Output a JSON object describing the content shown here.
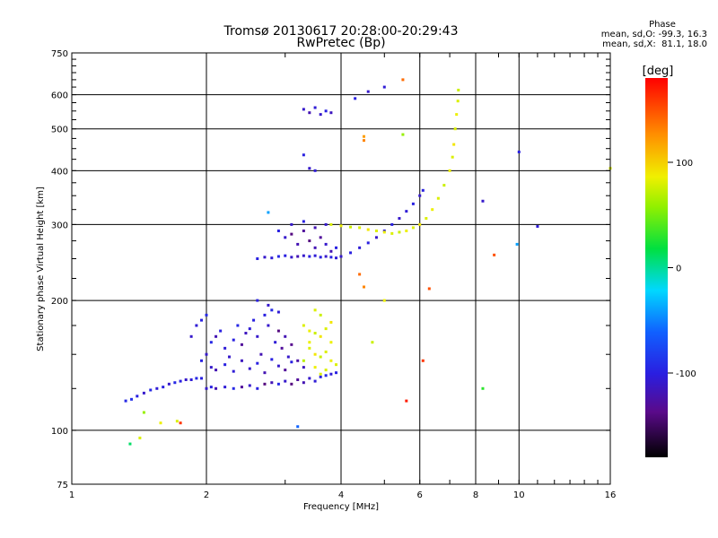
{
  "header": {
    "title_line1": "Tromsø 20130617 20:28:00-20:29:43",
    "title_line2": "RwPretec (Bp)"
  },
  "phase_box": {
    "title": "Phase",
    "line_o": "mean, sd,O: -99.3, 16.3",
    "line_x": "mean, sd,X:  81.1, 18.0"
  },
  "colorbar": {
    "unit_label": "[deg]",
    "range": [
      -180,
      180
    ],
    "ticks": [
      {
        "v": 100,
        "label": "100"
      },
      {
        "v": 0,
        "label": "0"
      },
      {
        "v": -100,
        "label": "-100"
      }
    ]
  },
  "chart_data": {
    "type": "scatter",
    "title": "Tromsø 20130617 20:28:00-20:29:43",
    "subtitle": "RwPretec (Bp)",
    "xlabel": "Frequency [MHz]",
    "ylabel": "Stationary phase Virtual Height [km]",
    "x_scale": "log",
    "y_scale": "log",
    "xlim": [
      1,
      16
    ],
    "ylim": [
      75,
      750
    ],
    "x_ticks": [
      {
        "v": 1,
        "label": "1"
      },
      {
        "v": 2,
        "label": "2"
      },
      {
        "v": 4,
        "label": "4"
      },
      {
        "v": 6,
        "label": "6"
      },
      {
        "v": 8,
        "label": "8"
      },
      {
        "v": 10,
        "label": "10"
      },
      {
        "v": 16,
        "label": "16"
      }
    ],
    "y_ticks": [
      {
        "v": 75,
        "label": "75"
      },
      {
        "v": 100,
        "label": "100"
      },
      {
        "v": 200,
        "label": "200"
      },
      {
        "v": 300,
        "label": "300"
      },
      {
        "v": 400,
        "label": "400"
      },
      {
        "v": 500,
        "label": "500"
      },
      {
        "v": 600,
        "label": "600"
      },
      {
        "v": 750,
        "label": "750"
      }
    ],
    "grid_x": [
      2,
      4,
      6,
      8,
      10
    ],
    "grid_y": [
      100,
      200,
      300,
      400,
      500,
      600
    ],
    "color_by": "phase_deg",
    "series": [
      {
        "name": "O",
        "points": [
          [
            1.32,
            117,
            -95
          ],
          [
            1.36,
            118,
            -90
          ],
          [
            1.4,
            120,
            -100
          ],
          [
            1.45,
            122,
            -110
          ],
          [
            1.5,
            124,
            -95
          ],
          [
            1.55,
            125,
            -105
          ],
          [
            1.6,
            126,
            -100
          ],
          [
            1.65,
            128,
            -110
          ],
          [
            1.7,
            129,
            -95
          ],
          [
            1.75,
            130,
            -100
          ],
          [
            1.8,
            131,
            -110
          ],
          [
            1.85,
            131,
            -105
          ],
          [
            1.9,
            132,
            -95
          ],
          [
            1.95,
            132,
            -100
          ],
          [
            2.0,
            125,
            -110
          ],
          [
            2.05,
            126,
            -100
          ],
          [
            2.1,
            125,
            -120
          ],
          [
            2.2,
            126,
            -105
          ],
          [
            2.3,
            125,
            -95
          ],
          [
            2.4,
            126,
            -130
          ],
          [
            2.5,
            127,
            -110
          ],
          [
            2.6,
            125,
            -100
          ],
          [
            2.7,
            128,
            -140
          ],
          [
            2.8,
            129,
            -120
          ],
          [
            2.9,
            128,
            -95
          ],
          [
            3.0,
            130,
            -110
          ],
          [
            3.1,
            128,
            -140
          ],
          [
            3.2,
            131,
            -130
          ],
          [
            3.3,
            129,
            -120
          ],
          [
            3.4,
            132,
            -110
          ],
          [
            3.5,
            130,
            -105
          ],
          [
            3.6,
            133,
            -100
          ],
          [
            3.7,
            134,
            -95
          ],
          [
            3.8,
            135,
            -105
          ],
          [
            3.9,
            136,
            -100
          ],
          [
            1.95,
            145,
            -100
          ],
          [
            2.0,
            150,
            -110
          ],
          [
            2.05,
            160,
            -95
          ],
          [
            2.1,
            165,
            -120
          ],
          [
            2.15,
            170,
            -100
          ],
          [
            2.2,
            155,
            -105
          ],
          [
            2.25,
            148,
            -110
          ],
          [
            2.3,
            162,
            -100
          ],
          [
            2.35,
            175,
            -95
          ],
          [
            2.4,
            158,
            -130
          ],
          [
            2.45,
            168,
            -115
          ],
          [
            2.5,
            172,
            -105
          ],
          [
            2.55,
            180,
            -100
          ],
          [
            2.6,
            165,
            -110
          ],
          [
            2.65,
            150,
            -120
          ],
          [
            2.7,
            185,
            -100
          ],
          [
            2.75,
            175,
            -110
          ],
          [
            2.8,
            190,
            -95
          ],
          [
            2.85,
            160,
            -105
          ],
          [
            2.9,
            170,
            -140
          ],
          [
            2.95,
            155,
            -130
          ],
          [
            3.0,
            165,
            -120
          ],
          [
            3.05,
            148,
            -110
          ],
          [
            3.1,
            158,
            -135
          ],
          [
            3.2,
            145,
            -125
          ],
          [
            3.3,
            140,
            -115
          ],
          [
            1.85,
            165,
            -110
          ],
          [
            1.9,
            175,
            -105
          ],
          [
            1.95,
            180,
            -100
          ],
          [
            2.0,
            185,
            -95
          ],
          [
            2.05,
            140,
            -110
          ],
          [
            2.1,
            138,
            -120
          ],
          [
            2.2,
            142,
            -100
          ],
          [
            2.3,
            137,
            -105
          ],
          [
            2.4,
            145,
            -115
          ],
          [
            2.5,
            139,
            -110
          ],
          [
            2.6,
            143,
            -100
          ],
          [
            2.7,
            136,
            -120
          ],
          [
            2.8,
            146,
            -100
          ],
          [
            2.9,
            141,
            -110
          ],
          [
            3.0,
            138,
            -130
          ],
          [
            3.1,
            144,
            -100
          ],
          [
            2.6,
            200,
            -100
          ],
          [
            2.75,
            195,
            -110
          ],
          [
            2.9,
            188,
            -105
          ],
          [
            2.6,
            250,
            -100
          ],
          [
            2.7,
            252,
            -110
          ],
          [
            2.8,
            251,
            -105
          ],
          [
            2.9,
            253,
            -95
          ],
          [
            3.0,
            254,
            -100
          ],
          [
            3.1,
            252,
            -110
          ],
          [
            3.2,
            253,
            -120
          ],
          [
            3.3,
            254,
            -110
          ],
          [
            3.4,
            253,
            -100
          ],
          [
            3.5,
            254,
            -105
          ],
          [
            3.6,
            252,
            -100
          ],
          [
            3.7,
            253,
            -110
          ],
          [
            3.8,
            252,
            -100
          ],
          [
            3.9,
            251,
            -105
          ],
          [
            4.0,
            253,
            -110
          ],
          [
            4.2,
            258,
            -100
          ],
          [
            4.4,
            265,
            -105
          ],
          [
            4.6,
            272,
            -100
          ],
          [
            4.8,
            280,
            -110
          ],
          [
            5.0,
            290,
            -105
          ],
          [
            5.2,
            300,
            -100
          ],
          [
            5.4,
            310,
            -110
          ],
          [
            5.6,
            322,
            -105
          ],
          [
            5.8,
            335,
            -100
          ],
          [
            6.0,
            350,
            -110
          ],
          [
            6.1,
            360,
            -100
          ],
          [
            2.9,
            290,
            -100
          ],
          [
            3.0,
            280,
            -110
          ],
          [
            3.1,
            285,
            -140
          ],
          [
            3.2,
            270,
            -120
          ],
          [
            3.3,
            290,
            -130
          ],
          [
            3.4,
            275,
            -140
          ],
          [
            3.5,
            265,
            -120
          ],
          [
            3.6,
            280,
            -130
          ],
          [
            3.7,
            270,
            -110
          ],
          [
            3.8,
            260,
            -120
          ],
          [
            3.9,
            265,
            -100
          ],
          [
            3.1,
            300,
            -110
          ],
          [
            3.3,
            305,
            -100
          ],
          [
            3.5,
            295,
            -120
          ],
          [
            3.7,
            300,
            -110
          ],
          [
            3.3,
            555,
            -110
          ],
          [
            3.4,
            545,
            -120
          ],
          [
            3.5,
            560,
            -105
          ],
          [
            3.6,
            540,
            -110
          ],
          [
            3.7,
            550,
            -100
          ],
          [
            3.8,
            545,
            -115
          ],
          [
            3.3,
            435,
            -100
          ],
          [
            3.4,
            405,
            -110
          ],
          [
            3.5,
            400,
            -105
          ],
          [
            4.3,
            588,
            -100
          ],
          [
            4.6,
            610,
            -110
          ],
          [
            5.0,
            625,
            -105
          ],
          [
            10.0,
            442,
            -100
          ],
          [
            8.3,
            340,
            -110
          ],
          [
            11.0,
            297,
            -105
          ]
        ]
      },
      {
        "name": "X",
        "points": [
          [
            3.3,
            175,
            80
          ],
          [
            3.4,
            170,
            85
          ],
          [
            3.5,
            168,
            75
          ],
          [
            3.6,
            165,
            90
          ],
          [
            3.7,
            172,
            80
          ],
          [
            3.8,
            160,
            85
          ],
          [
            3.4,
            155,
            80
          ],
          [
            3.5,
            150,
            90
          ],
          [
            3.6,
            148,
            75
          ],
          [
            3.7,
            152,
            80
          ],
          [
            3.8,
            145,
            85
          ],
          [
            3.9,
            142,
            80
          ],
          [
            3.3,
            145,
            70
          ],
          [
            3.5,
            140,
            85
          ],
          [
            3.7,
            138,
            80
          ],
          [
            3.8,
            178,
            90
          ],
          [
            3.6,
            185,
            75
          ],
          [
            3.5,
            190,
            80
          ],
          [
            3.4,
            160,
            85
          ],
          [
            3.6,
            135,
            80
          ],
          [
            3.8,
            300,
            80
          ],
          [
            4.0,
            298,
            85
          ],
          [
            4.2,
            296,
            75
          ],
          [
            4.4,
            295,
            80
          ],
          [
            4.6,
            292,
            90
          ],
          [
            4.8,
            290,
            80
          ],
          [
            5.0,
            288,
            85
          ],
          [
            5.2,
            286,
            80
          ],
          [
            5.4,
            288,
            75
          ],
          [
            5.6,
            290,
            85
          ],
          [
            5.8,
            295,
            80
          ],
          [
            6.0,
            300,
            90
          ],
          [
            6.2,
            310,
            80
          ],
          [
            6.4,
            325,
            85
          ],
          [
            6.6,
            345,
            80
          ],
          [
            6.8,
            370,
            75
          ],
          [
            7.0,
            400,
            85
          ],
          [
            7.1,
            430,
            80
          ],
          [
            7.15,
            460,
            90
          ],
          [
            7.2,
            500,
            80
          ],
          [
            7.25,
            540,
            85
          ],
          [
            7.3,
            580,
            80
          ],
          [
            7.32,
            615,
            75
          ],
          [
            4.7,
            160,
            75
          ],
          [
            5.0,
            200,
            85
          ],
          [
            5.5,
            485,
            60
          ],
          [
            16,
            405,
            80
          ],
          [
            1.72,
            105,
            80
          ],
          [
            1.58,
            104,
            85
          ],
          [
            1.42,
            96,
            80
          ]
        ]
      },
      {
        "name": "Other",
        "points": [
          [
            4.5,
            470,
            130
          ],
          [
            4.5,
            480,
            120
          ],
          [
            5.5,
            650,
            140
          ],
          [
            8.8,
            255,
            150
          ],
          [
            1.75,
            104,
            160
          ],
          [
            5.6,
            117,
            170
          ],
          [
            6.3,
            213,
            150
          ],
          [
            4.4,
            230,
            140
          ],
          [
            4.5,
            215,
            130
          ],
          [
            1.35,
            93,
            10
          ],
          [
            1.45,
            110,
            60
          ],
          [
            9.9,
            270,
            -40
          ],
          [
            8.3,
            125,
            30
          ],
          [
            3.2,
            102,
            -60
          ],
          [
            6.1,
            145,
            160
          ],
          [
            2.75,
            320,
            -40
          ]
        ]
      }
    ]
  }
}
